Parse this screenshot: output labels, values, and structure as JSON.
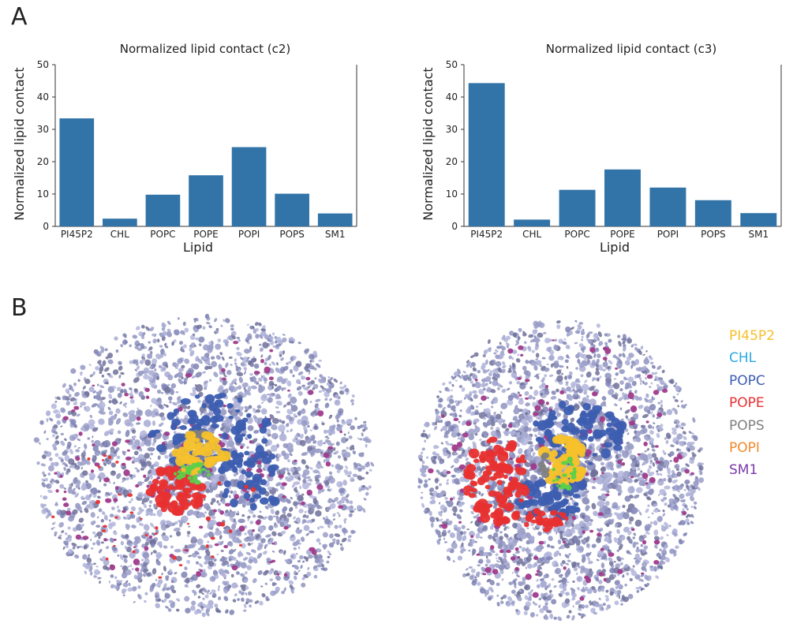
{
  "panels": {
    "a_label": "A",
    "b_label": "B"
  },
  "chart_data": [
    {
      "type": "bar",
      "title": "Normalized lipid contact  (c2)",
      "xlabel": "Lipid",
      "ylabel": "Normalized lipid contact",
      "categories": [
        "PI45P2",
        "CHL",
        "POPC",
        "POPE",
        "POPI",
        "POPS",
        "SM1"
      ],
      "values": [
        33.4,
        2.4,
        9.8,
        15.8,
        24.5,
        10.1,
        4.0
      ],
      "ylim": [
        0,
        50
      ],
      "yticks": [
        0,
        10,
        20,
        30,
        40,
        50
      ],
      "color": "#3274a8",
      "grid": false
    },
    {
      "type": "bar",
      "title": "Normalized lipid contact  (c3)",
      "xlabel": "Lipid",
      "ylabel": "Normalized lipid contact",
      "categories": [
        "PI45P2",
        "CHL",
        "POPC",
        "POPE",
        "POPI",
        "POPS",
        "SM1"
      ],
      "values": [
        44.3,
        2.1,
        11.3,
        17.6,
        12.0,
        8.1,
        4.1
      ],
      "ylim": [
        0,
        50
      ],
      "yticks": [
        0,
        10,
        20,
        30,
        40,
        50
      ],
      "color": "#3274a8",
      "grid": false
    }
  ],
  "legend": [
    {
      "label": "PI45P2",
      "color": "#f5c12b"
    },
    {
      "label": "CHL",
      "color": "#2aa9e0"
    },
    {
      "label": "POPC",
      "color": "#3c5db0"
    },
    {
      "label": "POPE",
      "color": "#e83030"
    },
    {
      "label": "POPS",
      "color": "#808080"
    },
    {
      "label": "POPI",
      "color": "#f08a2c"
    },
    {
      "label": "SM1",
      "color": "#7a3aa8"
    }
  ],
  "density": {
    "base_color": "#9a9ec8",
    "blob_colors": [
      "#9a9ec8",
      "#8f93c0",
      "#a7aad2",
      "#7f84b4",
      "#b2b5da",
      "#6f7099"
    ]
  }
}
